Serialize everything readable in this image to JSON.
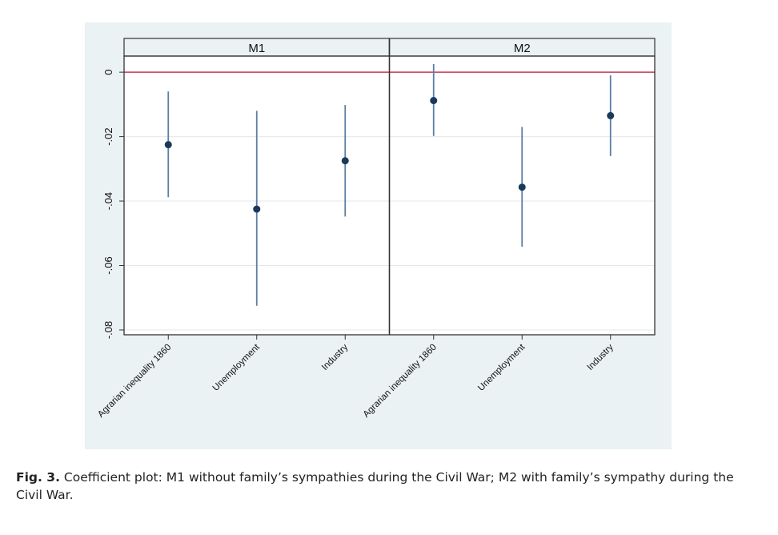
{
  "chart_data": {
    "type": "coefficient-plot",
    "panels": [
      {
        "title": "M1",
        "categories": [
          "Agrarian inequality 1860",
          "Unemployment",
          "Industry"
        ],
        "estimates": [
          -0.0225,
          -0.0425,
          -0.0275
        ],
        "ci_lower": [
          -0.0388,
          -0.0725,
          -0.0448
        ],
        "ci_upper": [
          -0.006,
          -0.012,
          -0.0102
        ]
      },
      {
        "title": "M2",
        "categories": [
          "Agrarian inequality 1860",
          "Unemployment",
          "Industry"
        ],
        "estimates": [
          -0.0088,
          -0.0357,
          -0.0135
        ],
        "ci_lower": [
          -0.0198,
          -0.0542,
          -0.026
        ],
        "ci_upper": [
          0.0025,
          -0.017,
          -0.001
        ]
      }
    ],
    "yticks": [
      0,
      -0.02,
      -0.04,
      -0.06,
      -0.08
    ],
    "ytick_labels": [
      "0",
      "-.02",
      "-.04",
      "-.06",
      "-.08"
    ],
    "ylim": [
      -0.0815,
      0.005
    ],
    "reference_line": 0,
    "reference_line_color": "#c8385a",
    "marker_color": "#1a3a5c",
    "ci_color": "#5a7fa3",
    "grid": true
  },
  "caption": {
    "label": "Fig. 3.",
    "text": "Coefficient plot: M1 without family’s sympathies during the Civil War; M2 with family’s sympathy during the Civil War."
  }
}
